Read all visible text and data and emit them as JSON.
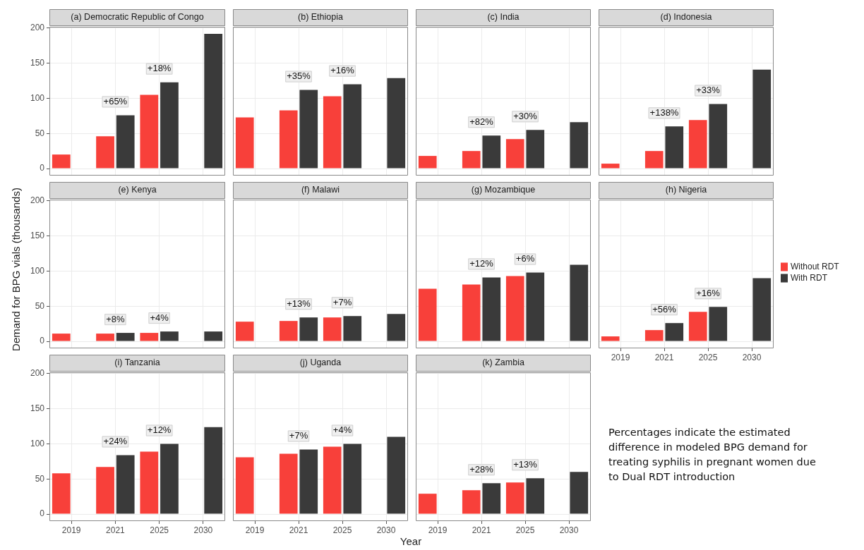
{
  "chart_data": [
    {
      "type": "bar",
      "title": "(a) Democratic Republic of Congo",
      "categories": [
        "2019",
        "2021",
        "2025",
        "2030"
      ],
      "series": [
        {
          "color": "#f8403a",
          "values": [
            20,
            46,
            105,
            null
          ]
        },
        {
          "color": "#3a3a3a",
          "values": [
            null,
            76,
            123,
            192
          ]
        }
      ],
      "ylim": [
        -10,
        202
      ],
      "yticks": [
        0,
        50,
        100,
        150,
        200
      ],
      "grid": true,
      "tick_labels": "y",
      "annotations": [
        {
          "text": "+65%",
          "x": "2021",
          "y": 76
        },
        {
          "text": "+18%",
          "x": "2025",
          "y": 123
        }
      ]
    },
    {
      "type": "bar",
      "title": "(b) Ethiopia",
      "categories": [
        "2019",
        "2021",
        "2025",
        "2030"
      ],
      "series": [
        {
          "color": "#f8403a",
          "values": [
            73,
            83,
            103,
            null
          ]
        },
        {
          "color": "#3a3a3a",
          "values": [
            null,
            112,
            120,
            129
          ]
        }
      ],
      "ylim": [
        -10,
        202
      ],
      "yticks": [
        0,
        50,
        100,
        150,
        200
      ],
      "grid": true,
      "tick_labels": false,
      "annotations": [
        {
          "text": "+35%",
          "x": "2021",
          "y": 112
        },
        {
          "text": "+16%",
          "x": "2025",
          "y": 120
        }
      ]
    },
    {
      "type": "bar",
      "title": "(c) India",
      "categories": [
        "2019",
        "2021",
        "2025",
        "2030"
      ],
      "series": [
        {
          "color": "#f8403a",
          "values": [
            18,
            25,
            42,
            null
          ]
        },
        {
          "color": "#3a3a3a",
          "values": [
            null,
            47,
            55,
            66
          ]
        }
      ],
      "ylim": [
        -10,
        202
      ],
      "yticks": [
        0,
        50,
        100,
        150,
        200
      ],
      "grid": true,
      "tick_labels": false,
      "annotations": [
        {
          "text": "+82%",
          "x": "2021",
          "y": 47
        },
        {
          "text": "+30%",
          "x": "2025",
          "y": 55
        }
      ]
    },
    {
      "type": "bar",
      "title": "(d) Indonesia",
      "categories": [
        "2019",
        "2021",
        "2025",
        "2030"
      ],
      "series": [
        {
          "color": "#f8403a",
          "values": [
            7,
            25,
            69,
            null
          ]
        },
        {
          "color": "#3a3a3a",
          "values": [
            null,
            60,
            92,
            141
          ]
        }
      ],
      "ylim": [
        -10,
        202
      ],
      "yticks": [
        0,
        50,
        100,
        150,
        200
      ],
      "grid": true,
      "tick_labels": false,
      "annotations": [
        {
          "text": "+138%",
          "x": "2021",
          "y": 60
        },
        {
          "text": "+33%",
          "x": "2025",
          "y": 92
        }
      ]
    },
    {
      "type": "bar",
      "title": "(e) Kenya",
      "categories": [
        "2019",
        "2021",
        "2025",
        "2030"
      ],
      "series": [
        {
          "color": "#f8403a",
          "values": [
            11,
            11,
            12,
            null
          ]
        },
        {
          "color": "#3a3a3a",
          "values": [
            null,
            12,
            14,
            14
          ]
        }
      ],
      "ylim": [
        -10,
        202
      ],
      "yticks": [
        0,
        50,
        100,
        150,
        200
      ],
      "grid": true,
      "tick_labels": "y",
      "ylabel": "Demand for BPG vials (thousands)",
      "annotations": [
        {
          "text": "+8%",
          "x": "2021",
          "y": 12
        },
        {
          "text": "+4%",
          "x": "2025",
          "y": 14
        }
      ]
    },
    {
      "type": "bar",
      "title": "(f) Malawi",
      "categories": [
        "2019",
        "2021",
        "2025",
        "2030"
      ],
      "series": [
        {
          "color": "#f8403a",
          "values": [
            28,
            29,
            34,
            null
          ]
        },
        {
          "color": "#3a3a3a",
          "values": [
            null,
            34,
            36,
            39
          ]
        }
      ],
      "ylim": [
        -10,
        202
      ],
      "yticks": [
        0,
        50,
        100,
        150,
        200
      ],
      "grid": true,
      "tick_labels": false,
      "annotations": [
        {
          "text": "+13%",
          "x": "2021",
          "y": 34
        },
        {
          "text": "+7%",
          "x": "2025",
          "y": 36
        }
      ]
    },
    {
      "type": "bar",
      "title": "(g) Mozambique",
      "categories": [
        "2019",
        "2021",
        "2025",
        "2030"
      ],
      "series": [
        {
          "color": "#f8403a",
          "values": [
            75,
            81,
            93,
            null
          ]
        },
        {
          "color": "#3a3a3a",
          "values": [
            null,
            91,
            98,
            109
          ]
        }
      ],
      "ylim": [
        -10,
        202
      ],
      "yticks": [
        0,
        50,
        100,
        150,
        200
      ],
      "grid": true,
      "tick_labels": false,
      "annotations": [
        {
          "text": "+12%",
          "x": "2021",
          "y": 91
        },
        {
          "text": "+6%",
          "x": "2025",
          "y": 98
        }
      ]
    },
    {
      "type": "bar",
      "title": "(h) Nigeria",
      "categories": [
        "2019",
        "2021",
        "2025",
        "2030"
      ],
      "series": [
        {
          "name": "Without RDT",
          "color": "#f8403a",
          "values": [
            7,
            16,
            42,
            null
          ]
        },
        {
          "name": "With RDT",
          "color": "#3a3a3a",
          "values": [
            null,
            26,
            49,
            90
          ]
        }
      ],
      "ylim": [
        -10,
        202
      ],
      "yticks": [
        0,
        50,
        100,
        150,
        200
      ],
      "grid": true,
      "tick_labels": "x",
      "legend": "right",
      "annotations": [
        {
          "text": "+56%",
          "x": "2021",
          "y": 26
        },
        {
          "text": "+16%",
          "x": "2025",
          "y": 49
        }
      ]
    },
    {
      "type": "bar",
      "title": "(i) Tanzania",
      "categories": [
        "2019",
        "2021",
        "2025",
        "2030"
      ],
      "series": [
        {
          "color": "#f8403a",
          "values": [
            58,
            67,
            89,
            null
          ]
        },
        {
          "color": "#3a3a3a",
          "values": [
            null,
            84,
            100,
            124
          ]
        }
      ],
      "ylim": [
        -10,
        202
      ],
      "yticks": [
        0,
        50,
        100,
        150,
        200
      ],
      "grid": true,
      "annotations": [
        {
          "text": "+24%",
          "x": "2021",
          "y": 84
        },
        {
          "text": "+12%",
          "x": "2025",
          "y": 100
        }
      ]
    },
    {
      "type": "bar",
      "title": "(j) Uganda",
      "categories": [
        "2019",
        "2021",
        "2025",
        "2030"
      ],
      "series": [
        {
          "color": "#f8403a",
          "values": [
            81,
            86,
            96,
            null
          ]
        },
        {
          "color": "#3a3a3a",
          "values": [
            null,
            92,
            100,
            110
          ]
        }
      ],
      "ylim": [
        -10,
        202
      ],
      "yticks": [
        0,
        50,
        100,
        150,
        200
      ],
      "grid": true,
      "tick_labels": "x",
      "xlabel": "Year",
      "annotations": [
        {
          "text": "+7%",
          "x": "2021",
          "y": 92
        },
        {
          "text": "+4%",
          "x": "2025",
          "y": 100
        }
      ]
    },
    {
      "type": "bar",
      "title": "(k) Zambia",
      "categories": [
        "2019",
        "2021",
        "2025",
        "2030"
      ],
      "series": [
        {
          "color": "#f8403a",
          "values": [
            29,
            34,
            45,
            null
          ]
        },
        {
          "color": "#3a3a3a",
          "values": [
            null,
            44,
            51,
            60
          ]
        }
      ],
      "ylim": [
        -10,
        202
      ],
      "yticks": [
        0,
        50,
        100,
        150,
        200
      ],
      "grid": true,
      "tick_labels": "x",
      "annotations": [
        {
          "text": "+28%",
          "x": "2021",
          "y": 44
        },
        {
          "text": "+13%",
          "x": "2025",
          "y": 51
        }
      ]
    },
    {
      "type": "other",
      "annotations": [
        "Percentages indicate the estimated difference in modeled BPG demand for treating syphilis in pregnant women due to Dual RDT introduction"
      ]
    }
  ]
}
